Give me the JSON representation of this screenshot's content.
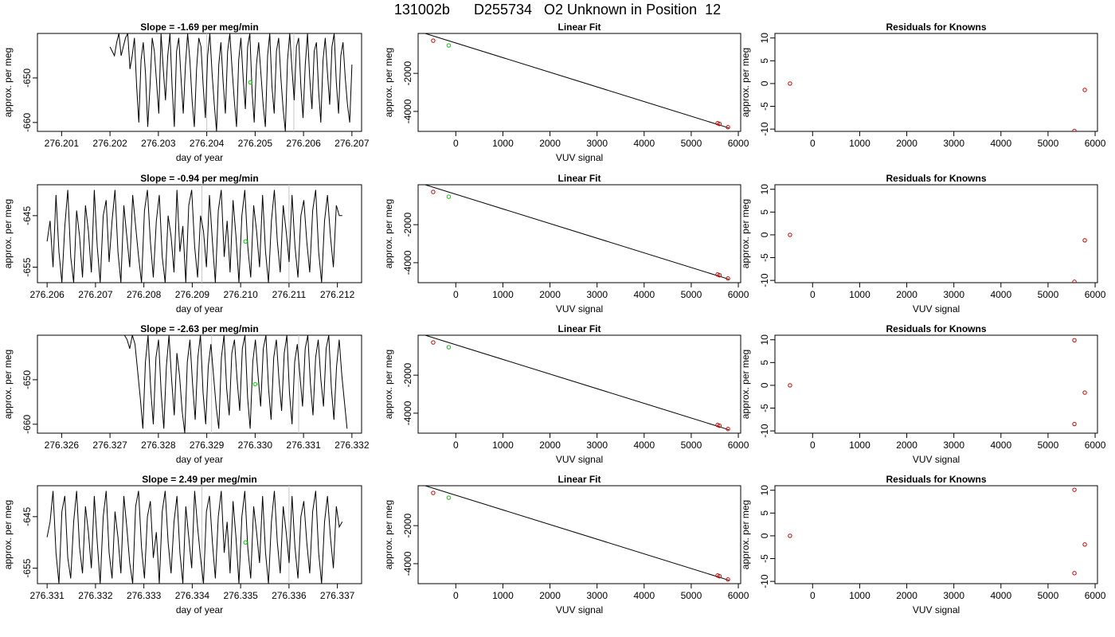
{
  "title": "131002b      D255734   O2 Unknown in Position  12",
  "colors": {
    "line": "#000000",
    "known": "#cc0000",
    "unknown": "#00cc00",
    "marker": "#c8c8c8"
  },
  "chart_data": [
    {
      "type": "line",
      "panel": "time",
      "title": "Slope =  -1.69  per meg/min",
      "xlabel": "day of year",
      "ylabel": "approx. per meg",
      "xlim": [
        276.2005,
        276.2072
      ],
      "ylim": [
        -662,
        -640
      ],
      "xticks": [
        "276.201",
        "276.202",
        "276.203",
        "276.204",
        "276.205",
        "276.206",
        "276.207"
      ],
      "yticks": [
        "-650",
        "-660"
      ],
      "x_start": 276.202,
      "x_end": 276.207,
      "series_values": [
        -643,
        -644,
        -645,
        -642,
        -640,
        -645,
        -643,
        -641,
        -640,
        -648,
        -645,
        -641,
        -652,
        -660,
        -646,
        -642,
        -649,
        -661,
        -652,
        -641,
        -644,
        -651,
        -658,
        -640,
        -648,
        -655,
        -645,
        -640,
        -652,
        -661,
        -644,
        -641,
        -650,
        -658,
        -647,
        -640,
        -646,
        -655,
        -661,
        -648,
        -641,
        -643,
        -652,
        -659,
        -645,
        -640,
        -649,
        -656,
        -662,
        -647,
        -642,
        -651,
        -658,
        -644,
        -640,
        -648,
        -655,
        -661,
        -646,
        -641,
        -650,
        -657,
        -643,
        -640,
        -653,
        -660,
        -647,
        -642,
        -649,
        -656,
        -661,
        -645,
        -640,
        -652,
        -658,
        -644,
        -641,
        -650,
        -657,
        -662,
        -646,
        -640,
        -648,
        -655,
        -643,
        -641,
        -652,
        -659,
        -647,
        -640,
        -650,
        -657,
        -644,
        -642,
        -653,
        -660,
        -646,
        -641,
        -649,
        -656,
        -643,
        -640,
        -651,
        -658,
        -645,
        -642,
        -650,
        -656,
        -660,
        -647
      ],
      "vlines": [
        276.204,
        276.2058
      ],
      "marker": {
        "x": 276.2049,
        "y": -651
      }
    },
    {
      "type": "scatter",
      "panel": "fit",
      "title": "Linear Fit",
      "xlabel": "VUV signal",
      "ylabel": "approx. per meg",
      "xlim": [
        -800,
        6050
      ],
      "ylim": [
        -5050,
        100
      ],
      "xticks": [
        "0",
        "1000",
        "2000",
        "3000",
        "4000",
        "5000",
        "6000"
      ],
      "yticks": [
        "-2000",
        "-4000"
      ],
      "line": [
        [
          -650,
          100
        ],
        [
          5800,
          -4870
        ]
      ],
      "known_points": [
        [
          -480,
          -280
        ],
        [
          5560,
          -4620
        ],
        [
          5600,
          -4660
        ],
        [
          5780,
          -4830
        ]
      ],
      "unknown_points": [
        [
          -150,
          -530
        ]
      ]
    },
    {
      "type": "scatter",
      "panel": "residuals",
      "title": "Residuals for Knowns",
      "xlabel": "",
      "ylabel": "approx. per meg",
      "xlim": [
        -800,
        6050
      ],
      "ylim": [
        -10.5,
        11
      ],
      "xticks": [
        "0",
        "1000",
        "2000",
        "3000",
        "4000",
        "5000",
        "6000"
      ],
      "yticks": [
        "10",
        "5",
        "0",
        "-5",
        "-10"
      ],
      "points": [
        [
          -480,
          0
        ],
        [
          5560,
          -10.4
        ],
        [
          5780,
          -1.4
        ]
      ]
    },
    {
      "type": "line",
      "panel": "time",
      "title": "Slope =  -0.94  per meg/min",
      "xlabel": "day of year",
      "ylabel": "approx. per meg",
      "xlim": [
        276.2058,
        276.2125
      ],
      "ylim": [
        -658,
        -639
      ],
      "xticks": [
        "276.206",
        "276.207",
        "276.208",
        "276.209",
        "276.210",
        "276.211",
        "276.212"
      ],
      "yticks": [
        "-645",
        "-655"
      ],
      "x_start": 276.206,
      "x_end": 276.2121,
      "series_values": [
        -650,
        -646,
        -655,
        -641,
        -652,
        -658,
        -647,
        -640,
        -653,
        -658,
        -644,
        -649,
        -657,
        -643,
        -648,
        -656,
        -640,
        -651,
        -658,
        -645,
        -642,
        -654,
        -646,
        -640,
        -652,
        -658,
        -643,
        -649,
        -655,
        -641,
        -647,
        -653,
        -658,
        -644,
        -640,
        -650,
        -657,
        -646,
        -641,
        -653,
        -658,
        -645,
        -649,
        -656,
        -640,
        -652,
        -647,
        -658,
        -643,
        -640,
        -651,
        -657,
        -645,
        -648,
        -655,
        -641,
        -650,
        -658,
        -644,
        -640,
        -653,
        -646,
        -656,
        -642,
        -649,
        -658,
        -645,
        -640,
        -651,
        -657,
        -643,
        -648,
        -655,
        -641,
        -652,
        -658,
        -646,
        -640,
        -650,
        -656,
        -643,
        -648,
        -654,
        -641,
        -651,
        -657,
        -645,
        -642,
        -650,
        -656,
        -644,
        -640,
        -652,
        -658,
        -646,
        -641,
        -649,
        -655,
        -643,
        -645,
        -645
      ],
      "vlines": [
        276.2092,
        276.211
      ],
      "marker": {
        "x": 276.2101,
        "y": -650
      }
    },
    {
      "type": "scatter",
      "panel": "fit",
      "title": "Linear Fit",
      "xlabel": "VUV signal",
      "ylabel": "approx. per meg",
      "xlim": [
        -800,
        6050
      ],
      "ylim": [
        -5050,
        100
      ],
      "xticks": [
        "0",
        "1000",
        "2000",
        "3000",
        "4000",
        "5000",
        "6000"
      ],
      "yticks": [
        "-2000",
        "-4000"
      ],
      "line": [
        [
          -650,
          100
        ],
        [
          5800,
          -4870
        ]
      ],
      "known_points": [
        [
          -480,
          -280
        ],
        [
          5560,
          -4620
        ],
        [
          5600,
          -4660
        ],
        [
          5780,
          -4830
        ]
      ],
      "unknown_points": [
        [
          -150,
          -530
        ]
      ]
    },
    {
      "type": "scatter",
      "panel": "residuals",
      "title": "Residuals for Knowns",
      "xlabel": "VUV signal",
      "ylabel": "approx. per meg",
      "xlim": [
        -800,
        6050
      ],
      "ylim": [
        -10.5,
        11
      ],
      "xticks": [
        "0",
        "1000",
        "2000",
        "3000",
        "4000",
        "5000",
        "6000"
      ],
      "yticks": [
        "10",
        "5",
        "0",
        "-5",
        "-10"
      ],
      "points": [
        [
          -480,
          0
        ],
        [
          5560,
          -10.3
        ],
        [
          5780,
          -1.2
        ]
      ]
    },
    {
      "type": "line",
      "panel": "time",
      "title": "Slope =  -2.63  per meg/min",
      "xlabel": "day of year",
      "ylabel": "approx. per meg",
      "xlim": [
        276.3255,
        276.3322
      ],
      "ylim": [
        -662,
        -640
      ],
      "xticks": [
        "276.326",
        "276.327",
        "276.328",
        "276.329",
        "276.330",
        "276.331",
        "276.332"
      ],
      "yticks": [
        "-650",
        "-660"
      ],
      "x_start": 276.3273,
      "x_end": 276.3319,
      "series_values": [
        -640,
        -641,
        -643,
        -640,
        -642,
        -648,
        -654,
        -661,
        -646,
        -640,
        -652,
        -660,
        -645,
        -641,
        -653,
        -661,
        -647,
        -640,
        -650,
        -658,
        -644,
        -649,
        -657,
        -662,
        -646,
        -641,
        -651,
        -659,
        -645,
        -640,
        -653,
        -660,
        -647,
        -642,
        -649,
        -656,
        -661,
        -645,
        -640,
        -652,
        -658,
        -644,
        -641,
        -650,
        -657,
        -643,
        -640,
        -654,
        -661,
        -646,
        -641,
        -649,
        -656,
        -643,
        -640,
        -652,
        -659,
        -645,
        -641,
        -650,
        -657,
        -644,
        -640,
        -653,
        -660,
        -646,
        -642,
        -649,
        -656,
        -643,
        -640,
        -651,
        -658,
        -645,
        -641,
        -650,
        -656,
        -643,
        -640,
        -652,
        -659,
        -647,
        -641,
        -649,
        -655,
        -661
      ],
      "vlines": [
        276.3291,
        276.3309
      ],
      "marker": {
        "x": 276.33,
        "y": -651
      }
    },
    {
      "type": "scatter",
      "panel": "fit",
      "title": "Linear Fit",
      "xlabel": "VUV signal",
      "ylabel": "approx. per meg",
      "xlim": [
        -800,
        6050
      ],
      "ylim": [
        -5050,
        100
      ],
      "xticks": [
        "0",
        "1000",
        "2000",
        "3000",
        "4000",
        "5000",
        "6000"
      ],
      "yticks": [
        "-2000",
        "-4000"
      ],
      "line": [
        [
          -650,
          100
        ],
        [
          5800,
          -4870
        ]
      ],
      "known_points": [
        [
          -480,
          -280
        ],
        [
          5560,
          -4620
        ],
        [
          5600,
          -4660
        ],
        [
          5780,
          -4830
        ]
      ],
      "unknown_points": [
        [
          -150,
          -530
        ]
      ]
    },
    {
      "type": "scatter",
      "panel": "residuals",
      "title": "Residuals for Knowns",
      "xlabel": "VUV signal",
      "ylabel": "approx. per meg",
      "xlim": [
        -800,
        6050
      ],
      "ylim": [
        -10.5,
        11
      ],
      "xticks": [
        "0",
        "1000",
        "2000",
        "3000",
        "4000",
        "5000",
        "6000"
      ],
      "yticks": [
        "10",
        "5",
        "0",
        "-5",
        "-10"
      ],
      "points": [
        [
          -480,
          0
        ],
        [
          5560,
          9.9
        ],
        [
          5560,
          -8.5
        ],
        [
          5780,
          -1.6
        ]
      ]
    },
    {
      "type": "line",
      "panel": "time",
      "title": "Slope =  2.49  per meg/min",
      "xlabel": "day of year",
      "ylabel": "approx. per meg",
      "xlim": [
        276.3308,
        276.3375
      ],
      "ylim": [
        -658,
        -639
      ],
      "xticks": [
        "276.331",
        "276.332",
        "276.333",
        "276.334",
        "276.335",
        "276.336",
        "276.337"
      ],
      "yticks": [
        "-645",
        "-655"
      ],
      "x_start": 276.331,
      "x_end": 276.3371,
      "series_values": [
        -649,
        -646,
        -640,
        -652,
        -658,
        -644,
        -641,
        -653,
        -657,
        -646,
        -640,
        -651,
        -656,
        -643,
        -648,
        -655,
        -641,
        -650,
        -658,
        -645,
        -640,
        -652,
        -657,
        -644,
        -649,
        -656,
        -641,
        -647,
        -654,
        -658,
        -643,
        -640,
        -651,
        -657,
        -645,
        -642,
        -653,
        -648,
        -658,
        -644,
        -640,
        -650,
        -656,
        -646,
        -641,
        -652,
        -658,
        -643,
        -649,
        -655,
        -640,
        -647,
        -653,
        -658,
        -644,
        -641,
        -650,
        -657,
        -645,
        -640,
        -652,
        -646,
        -656,
        -642,
        -649,
        -658,
        -645,
        -640,
        -651,
        -657,
        -643,
        -648,
        -654,
        -641,
        -652,
        -658,
        -646,
        -640,
        -650,
        -656,
        -643,
        -648,
        -654,
        -641,
        -651,
        -657,
        -645,
        -642,
        -650,
        -656,
        -644,
        -640,
        -652,
        -658,
        -646,
        -641,
        -649,
        -655,
        -643,
        -647,
        -646
      ],
      "vlines": [
        276.3342,
        276.336
      ],
      "marker": {
        "x": 276.3351,
        "y": -650
      }
    },
    {
      "type": "scatter",
      "panel": "fit",
      "title": "Linear Fit",
      "xlabel": "VUV signal",
      "ylabel": "approx. per meg",
      "xlim": [
        -800,
        6050
      ],
      "ylim": [
        -5050,
        100
      ],
      "xticks": [
        "0",
        "1000",
        "2000",
        "3000",
        "4000",
        "5000",
        "6000"
      ],
      "yticks": [
        "-2000",
        "-4000"
      ],
      "line": [
        [
          -650,
          100
        ],
        [
          5800,
          -4870
        ]
      ],
      "known_points": [
        [
          -480,
          -280
        ],
        [
          5560,
          -4620
        ],
        [
          5600,
          -4660
        ],
        [
          5780,
          -4830
        ]
      ],
      "unknown_points": [
        [
          -150,
          -530
        ]
      ]
    },
    {
      "type": "scatter",
      "panel": "residuals",
      "title": "Residuals for Knowns",
      "xlabel": "VUV signal",
      "ylabel": "approx. per meg",
      "xlim": [
        -800,
        6050
      ],
      "ylim": [
        -10.5,
        11
      ],
      "xticks": [
        "0",
        "1000",
        "2000",
        "3000",
        "4000",
        "5000",
        "6000"
      ],
      "yticks": [
        "10",
        "5",
        "0",
        "-5",
        "-10"
      ],
      "points": [
        [
          -480,
          0
        ],
        [
          5560,
          10.1
        ],
        [
          5560,
          -8.2
        ],
        [
          5780,
          -1.9
        ]
      ]
    }
  ]
}
